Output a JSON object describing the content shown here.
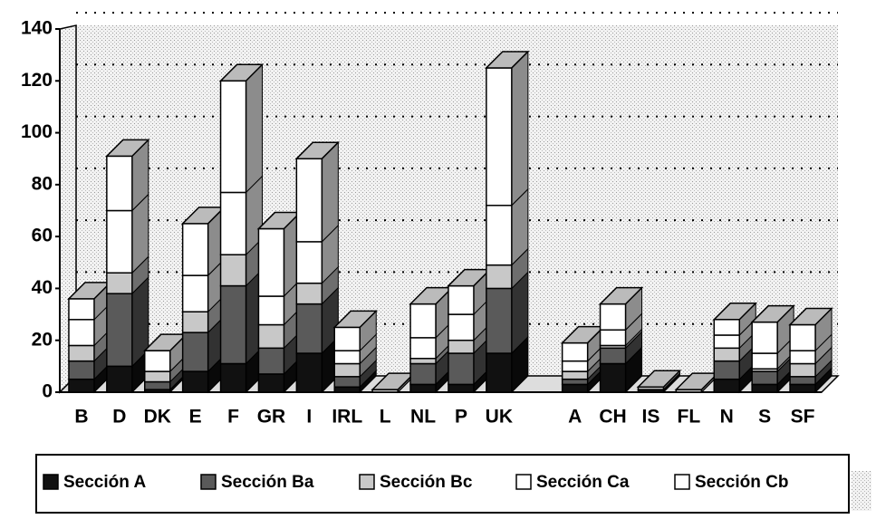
{
  "chart_data": {
    "type": "bar3d_stacked",
    "categories": [
      "B",
      "D",
      "DK",
      "E",
      "F",
      "GR",
      "I",
      "IRL",
      "L",
      "NL",
      "P",
      "UK",
      null,
      "A",
      "CH",
      "IS",
      "FL",
      "N",
      "S",
      "SF"
    ],
    "series": [
      {
        "name": "Sección A",
        "color": "#111111",
        "values": [
          5,
          10,
          1,
          8,
          11,
          7,
          15,
          2,
          0,
          3,
          3,
          15,
          null,
          3,
          11,
          1,
          0,
          5,
          3,
          3
        ]
      },
      {
        "name": "Sección Ba",
        "color": "#5a5a5a",
        "values": [
          7,
          28,
          3,
          15,
          30,
          10,
          19,
          4,
          0,
          8,
          12,
          25,
          null,
          2,
          6,
          0,
          0,
          7,
          5,
          3
        ]
      },
      {
        "name": "Sección Bc",
        "color": "#c8c8c8",
        "values": [
          6,
          8,
          4,
          8,
          12,
          9,
          8,
          5,
          1,
          2,
          5,
          9,
          null,
          3,
          1,
          1,
          1,
          5,
          1,
          5
        ]
      },
      {
        "name": "Sección Ca",
        "color": "#ffffff",
        "values": [
          10,
          24,
          0,
          14,
          24,
          11,
          16,
          5,
          0,
          8,
          10,
          23,
          null,
          4,
          6,
          0,
          0,
          5,
          6,
          5
        ]
      },
      {
        "name": "Sección Cb",
        "color": "#ffffff",
        "values": [
          8,
          21,
          8,
          20,
          43,
          26,
          32,
          9,
          0,
          13,
          11,
          53,
          null,
          7,
          10,
          0,
          0,
          6,
          12,
          10
        ]
      }
    ],
    "ylim": [
      0,
      140
    ],
    "yticks": [
      0,
      20,
      40,
      60,
      80,
      100,
      120,
      140
    ],
    "grid": true,
    "legend": "bottom"
  }
}
